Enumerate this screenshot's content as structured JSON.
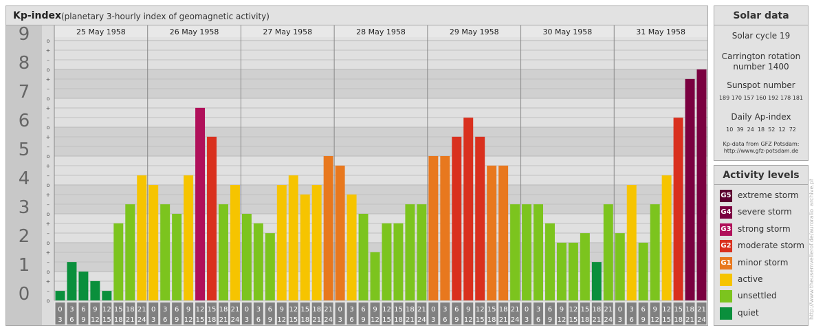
{
  "header": {
    "title": "Kp-index",
    "subtitle": "(planetary 3-hourly index of geomagnetic activity)"
  },
  "solar": {
    "title": "Solar data",
    "cycle": "Solar cycle 19",
    "carrington_line1": "Carrington rotation",
    "carrington_line2": "number 1400",
    "sunspot_title": "Sunspot number",
    "sunspot_values": "189 170 157 160 192 178 181",
    "ap_title": "Daily Ap-index",
    "ap_values": "10  39  24  18  52  12  72",
    "credit_line1": "Kp-data from GFZ Potsdam:",
    "credit_line2": "http://www.gfz-potsdam.de"
  },
  "activity": {
    "title": "Activity levels",
    "levels": [
      {
        "code": "G5",
        "label": "extreme storm",
        "color": "#5c0030"
      },
      {
        "code": "G4",
        "label": "severe storm",
        "color": "#7a0040"
      },
      {
        "code": "G3",
        "label": "strong storm",
        "color": "#b0105a"
      },
      {
        "code": "G2",
        "label": "moderate storm",
        "color": "#d9301e"
      },
      {
        "code": "G1",
        "label": "minor storm",
        "color": "#e8781e"
      },
      {
        "code": "",
        "label": "active",
        "color": "#f6c400"
      },
      {
        "code": "",
        "label": "unsettled",
        "color": "#7cc41e"
      },
      {
        "code": "",
        "label": "quiet",
        "color": "#0a8f3c"
      }
    ]
  },
  "side_credit": "http://www.theusemvellerof.de/auroralio_archive.php",
  "chart_data": {
    "type": "bar",
    "title": "Kp-index",
    "ylim": [
      0,
      9
    ],
    "y_ticks": [
      "0",
      "1",
      "2",
      "3",
      "4",
      "5",
      "6",
      "7",
      "8",
      "9"
    ],
    "minor_marks": [
      "+",
      "o",
      "–"
    ],
    "days": [
      "25 May 1958",
      "26 May 1958",
      "27 May 1958",
      "28 May 1958",
      "29 May 1958",
      "30 May 1958",
      "31 May 1958"
    ],
    "hours_top": [
      "0",
      "3",
      "6",
      "9",
      "12",
      "15",
      "18",
      "21"
    ],
    "hours_bottom": [
      "3",
      "6",
      "9",
      "12",
      "15",
      "18",
      "21",
      "24"
    ],
    "values": [
      [
        0.33,
        1.33,
        1.0,
        0.67,
        0.33,
        2.67,
        3.33,
        4.33
      ],
      [
        4.0,
        3.33,
        3.0,
        4.33,
        6.67,
        5.67,
        3.33,
        4.0
      ],
      [
        3.0,
        2.67,
        2.33,
        4.0,
        4.33,
        3.67,
        4.0,
        5.0
      ],
      [
        4.67,
        3.67,
        3.0,
        1.67,
        2.67,
        2.67,
        3.33,
        3.33
      ],
      [
        5.0,
        5.0,
        5.67,
        6.33,
        5.67,
        4.67,
        4.67,
        3.33
      ],
      [
        3.33,
        3.33,
        2.67,
        2.0,
        2.0,
        2.33,
        1.33,
        3.33
      ],
      [
        2.33,
        4.0,
        2.0,
        3.33,
        4.33,
        6.33,
        7.67,
        8.0
      ]
    ],
    "colors": [
      "#5c0030",
      "#7a0040",
      "#b0105a",
      "#d9301e",
      "#e8781e",
      "#f6c400",
      "#7cc41e",
      "#0a8f3c"
    ],
    "grid": true,
    "legend": "right"
  }
}
